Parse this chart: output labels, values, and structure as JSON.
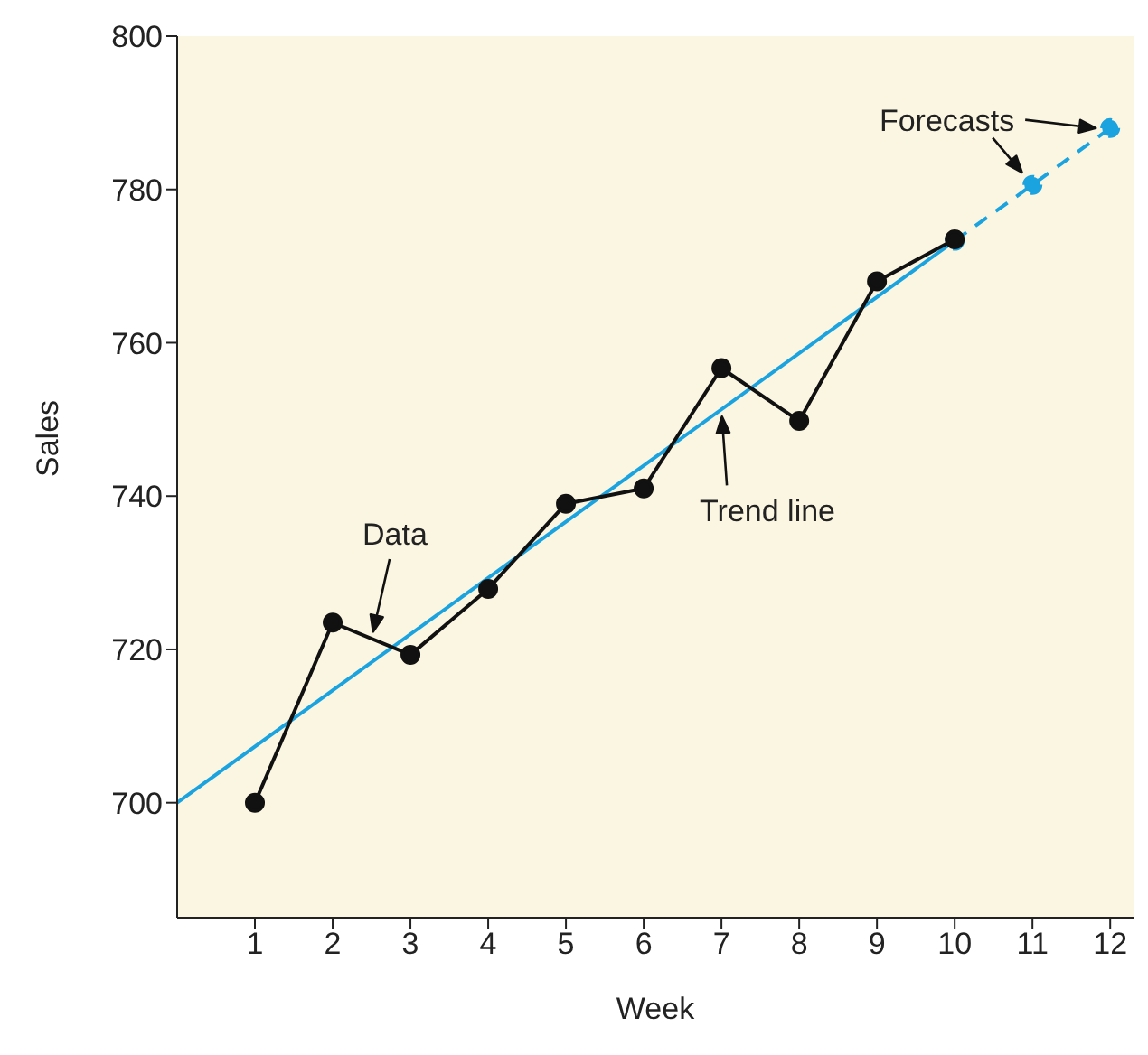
{
  "chart_data": {
    "type": "line",
    "xlabel": "Week",
    "ylabel": "Sales",
    "xlim": [
      0,
      12.3
    ],
    "xticks": [
      1,
      2,
      3,
      4,
      5,
      6,
      7,
      8,
      9,
      10,
      11,
      12
    ],
    "ylim": [
      685,
      800
    ],
    "yticks": [
      700,
      720,
      740,
      760,
      780,
      800
    ],
    "grid": false,
    "series": [
      {
        "color": "#1ba3e0",
        "x": [
          0,
          10
        ],
        "values": [
          700,
          773.3
        ],
        "line_style": "solid"
      },
      {
        "color": "#1ba3e0",
        "x": [
          10,
          11,
          12
        ],
        "values": [
          773.3,
          780.6,
          788
        ],
        "marker": "circle",
        "line_style": "dashed"
      },
      {
        "color": "#111111",
        "x": [
          1,
          2,
          3,
          4,
          5,
          6,
          7,
          8,
          9,
          10
        ],
        "values": [
          700,
          723.5,
          719.3,
          727.9,
          739,
          741,
          756.7,
          749.8,
          768,
          773.5
        ],
        "marker": "circle",
        "line_style": "solid"
      }
    ],
    "annotations": [
      {
        "text": "Data",
        "x": 2.5,
        "y": 721.4
      },
      {
        "text": "Trend line",
        "x": 7,
        "y": 751.3
      },
      {
        "text": "Forecasts",
        "x": 11,
        "y": 780.6
      }
    ]
  }
}
